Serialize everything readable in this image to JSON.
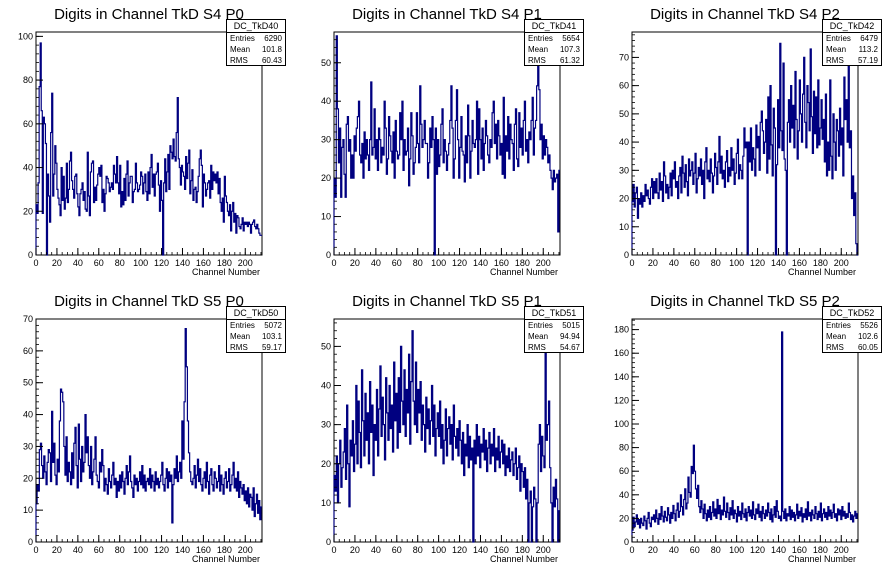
{
  "chart_data": [
    {
      "type": "bar",
      "title": "Digits in Channel TkD S4 P0",
      "xlabel": "Channel Number",
      "xlim": [
        0,
        216
      ],
      "ylim": [
        0,
        102
      ],
      "xticks": [
        0,
        20,
        40,
        60,
        80,
        100,
        120,
        140,
        160,
        180,
        200
      ],
      "yticks": [
        0,
        20,
        40,
        60,
        80,
        100
      ],
      "stats": {
        "name": "DC_TkD40",
        "entries_label": "Entries",
        "entries": "6290",
        "mean_label": "Mean",
        "mean": "101.8",
        "rms_label": "RMS",
        "rms": "60.43"
      },
      "color": "#000080",
      "values": [
        23,
        19,
        33,
        77,
        97,
        66,
        19,
        63,
        60,
        51,
        0,
        37,
        27,
        15,
        56,
        74,
        27,
        37,
        50,
        42,
        30,
        26,
        23,
        18,
        40,
        25,
        36,
        21,
        26,
        42,
        24,
        30,
        43,
        47,
        34,
        30,
        26,
        36,
        37,
        28,
        22,
        18,
        28,
        30,
        33,
        25,
        29,
        21,
        20,
        47,
        27,
        18,
        38,
        42,
        43,
        24,
        31,
        25,
        32,
        37,
        40,
        36,
        41,
        24,
        30,
        20,
        28,
        36,
        35,
        33,
        29,
        31,
        33,
        30,
        41,
        37,
        33,
        45,
        33,
        28,
        41,
        22,
        29,
        23,
        35,
        25,
        37,
        43,
        27,
        33,
        36,
        36,
        24,
        29,
        30,
        42,
        33,
        29,
        30,
        32,
        38,
        36,
        28,
        33,
        37,
        29,
        25,
        38,
        28,
        40,
        46,
        31,
        37,
        27,
        37,
        38,
        42,
        32,
        20,
        34,
        25,
        0,
        33,
        44,
        29,
        38,
        46,
        30,
        50,
        47,
        44,
        53,
        45,
        43,
        56,
        72,
        44,
        40,
        32,
        41,
        38,
        36,
        30,
        45,
        35,
        42,
        48,
        28,
        34,
        39,
        25,
        30,
        31,
        24,
        29,
        36,
        44,
        48,
        41,
        22,
        37,
        33,
        27,
        30,
        33,
        34,
        26,
        41,
        30,
        38,
        34,
        37,
        33,
        38,
        28,
        35,
        24,
        20,
        26,
        15,
        36,
        27,
        24,
        20,
        18,
        23,
        11,
        20,
        24,
        15,
        19,
        10,
        18,
        17,
        13,
        12,
        14,
        17,
        11,
        15,
        14,
        15,
        13,
        15,
        14,
        10,
        14,
        15,
        16,
        13,
        12,
        14,
        12,
        10,
        9,
        9
      ]
    },
    {
      "type": "bar",
      "title": "Digits in Channel TkD S4 P1",
      "xlabel": "Channel Number",
      "xlim": [
        0,
        216
      ],
      "ylim": [
        0,
        58
      ],
      "xticks": [
        0,
        20,
        40,
        60,
        80,
        100,
        120,
        140,
        160,
        180,
        200
      ],
      "yticks": [
        0,
        10,
        20,
        30,
        40,
        50
      ],
      "stats": {
        "name": "DC_TkD41",
        "entries_label": "Entries",
        "entries": "5654",
        "mean_label": "Mean",
        "mean": "107.3",
        "rms_label": "RMS",
        "rms": "61.32"
      },
      "color": "#000080",
      "values": [
        20,
        15,
        57,
        38,
        24,
        33,
        15,
        28,
        30,
        21,
        15,
        34,
        36,
        27,
        30,
        20,
        26,
        20,
        31,
        27,
        33,
        36,
        40,
        26,
        24,
        29,
        20,
        32,
        25,
        30,
        26,
        22,
        30,
        45,
        26,
        28,
        38,
        25,
        30,
        22,
        33,
        30,
        24,
        28,
        26,
        40,
        33,
        21,
        25,
        36,
        31,
        27,
        24,
        32,
        20,
        35,
        27,
        25,
        26,
        37,
        30,
        40,
        22,
        30,
        26,
        27,
        33,
        18,
        25,
        37,
        31,
        21,
        24,
        28,
        37,
        29,
        24,
        44,
        34,
        28,
        30,
        35,
        29,
        29,
        20,
        24,
        33,
        28,
        36,
        30,
        0,
        33,
        21,
        30,
        23,
        26,
        34,
        38,
        24,
        30,
        27,
        22,
        26,
        29,
        35,
        44,
        33,
        20,
        25,
        35,
        43,
        30,
        20,
        28,
        36,
        27,
        26,
        19,
        31,
        24,
        39,
        31,
        20,
        27,
        35,
        29,
        28,
        30,
        40,
        21,
        38,
        30,
        25,
        33,
        22,
        29,
        35,
        31,
        26,
        24,
        30,
        28,
        37,
        40,
        29,
        34,
        25,
        35,
        31,
        26,
        29,
        21,
        41,
        20,
        31,
        27,
        36,
        25,
        34,
        30,
        29,
        22,
        34,
        38,
        25,
        23,
        37,
        28,
        33,
        26,
        35,
        40,
        27,
        30,
        24,
        32,
        30,
        35,
        41,
        26,
        33,
        35,
        44,
        49,
        43,
        30,
        34,
        25,
        31,
        26,
        30,
        28,
        24,
        26,
        22,
        20,
        17,
        22,
        19,
        20,
        21,
        6,
        22
      ]
    },
    {
      "type": "bar",
      "title": "Digits in Channel TkD S4 P2",
      "xlabel": "Channel Number",
      "xlim": [
        0,
        216
      ],
      "ylim": [
        0,
        79
      ],
      "xticks": [
        0,
        20,
        40,
        60,
        80,
        100,
        120,
        140,
        160,
        180,
        200
      ],
      "yticks": [
        0,
        10,
        20,
        30,
        40,
        50,
        60,
        70
      ],
      "stats": {
        "name": "DC_TkD42",
        "entries_label": "Entries",
        "entries": "6479",
        "mean_label": "Mean",
        "mean": "113.2",
        "rms_label": "RMS",
        "rms": "57.19"
      },
      "color": "#000080",
      "values": [
        19,
        25,
        17,
        22,
        24,
        13,
        20,
        18,
        22,
        17,
        21,
        19,
        25,
        21,
        23,
        20,
        18,
        24,
        27,
        20,
        26,
        22,
        27,
        22,
        20,
        29,
        23,
        26,
        19,
        33,
        28,
        22,
        25,
        20,
        24,
        29,
        21,
        30,
        27,
        33,
        24,
        26,
        20,
        28,
        31,
        22,
        35,
        29,
        24,
        32,
        26,
        21,
        34,
        28,
        30,
        33,
        25,
        29,
        36,
        22,
        27,
        31,
        28,
        34,
        25,
        30,
        20,
        33,
        38,
        27,
        30,
        26,
        34,
        29,
        22,
        28,
        36,
        31,
        25,
        33,
        42,
        29,
        35,
        27,
        30,
        24,
        33,
        37,
        26,
        31,
        28,
        38,
        30,
        34,
        25,
        29,
        36,
        41,
        27,
        32,
        30,
        27,
        35,
        45,
        38,
        40,
        0,
        40,
        33,
        45,
        30,
        38,
        34,
        28,
        46,
        38,
        42,
        30,
        47,
        51,
        44,
        36,
        40,
        48,
        29,
        56,
        34,
        60,
        39,
        28,
        52,
        45,
        0,
        32,
        55,
        38,
        75,
        44,
        37,
        68,
        34,
        30,
        0,
        47,
        55,
        40,
        60,
        45,
        53,
        38,
        65,
        48,
        34,
        44,
        62,
        50,
        40,
        57,
        70,
        47,
        38,
        60,
        54,
        44,
        73,
        49,
        36,
        58,
        43,
        56,
        38,
        62,
        39,
        45,
        55,
        41,
        48,
        33,
        57,
        28,
        40,
        30,
        62,
        35,
        27,
        50,
        40,
        30,
        48,
        44,
        35,
        52,
        39,
        45,
        28,
        63,
        48,
        55,
        40,
        69,
        38,
        44,
        20,
        28,
        14,
        22,
        4,
        0
      ]
    },
    {
      "type": "bar",
      "title": "Digits in Channel TkD S5 P0",
      "xlabel": "Channel Number",
      "xlim": [
        0,
        216
      ],
      "ylim": [
        0,
        70
      ],
      "xticks": [
        0,
        20,
        40,
        60,
        80,
        100,
        120,
        140,
        160,
        180,
        200
      ],
      "yticks": [
        0,
        10,
        20,
        30,
        40,
        50,
        60,
        70
      ],
      "stats": {
        "name": "DC_TkD50",
        "entries_label": "Entries",
        "entries": "5072",
        "mean_label": "Mean",
        "mean": "103.1",
        "rms_label": "RMS",
        "rms": "59.17"
      },
      "color": "#000080",
      "values": [
        12,
        18,
        16,
        29,
        31,
        24,
        20,
        27,
        22,
        18,
        25,
        29,
        28,
        19,
        41,
        25,
        31,
        21,
        18,
        26,
        22,
        38,
        48,
        47,
        44,
        30,
        21,
        33,
        19,
        25,
        22,
        18,
        28,
        20,
        31,
        36,
        24,
        17,
        37,
        26,
        19,
        30,
        22,
        25,
        40,
        28,
        33,
        24,
        20,
        30,
        18,
        22,
        26,
        33,
        21,
        19,
        17,
        25,
        22,
        29,
        24,
        16,
        20,
        18,
        15,
        23,
        19,
        17,
        21,
        25,
        18,
        20,
        14,
        19,
        16,
        21,
        17,
        22,
        19,
        15,
        20,
        24,
        18,
        22,
        27,
        19,
        17,
        14,
        21,
        18,
        20,
        16,
        19,
        22,
        18,
        24,
        17,
        21,
        16,
        19,
        20,
        18,
        23,
        17,
        21,
        19,
        16,
        22,
        18,
        20,
        17,
        19,
        21,
        25,
        18,
        16,
        20,
        23,
        17,
        22,
        19,
        21,
        6,
        18,
        23,
        20,
        27,
        19,
        22,
        25,
        20,
        38,
        26,
        44,
        67,
        55,
        38,
        28,
        22,
        19,
        18,
        20,
        24,
        17,
        21,
        26,
        19,
        23,
        18,
        16,
        20,
        22,
        17,
        25,
        19,
        15,
        21,
        23,
        18,
        16,
        22,
        20,
        17,
        19,
        24,
        16,
        21,
        18,
        15,
        20,
        22,
        17,
        19,
        23,
        16,
        18,
        21,
        25,
        17,
        20,
        16,
        22,
        14,
        19,
        17,
        15,
        18,
        13,
        16,
        12,
        17,
        11,
        15,
        14,
        10,
        17,
        8,
        12,
        15,
        9,
        13,
        7,
        11
      ]
    },
    {
      "type": "bar",
      "title": "Digits in Channel TkD S5 P1",
      "xlabel": "Channel Number",
      "xlim": [
        0,
        216
      ],
      "ylim": [
        0,
        57
      ],
      "xticks": [
        0,
        20,
        40,
        60,
        80,
        100,
        120,
        140,
        160,
        180,
        200
      ],
      "yticks": [
        0,
        10,
        20,
        30,
        40,
        50
      ],
      "stats": {
        "name": "DC_TkD51",
        "entries_label": "Entries",
        "entries": "5015",
        "mean_label": "Mean",
        "mean": "94.94",
        "rms_label": "RMS",
        "rms": "54.67"
      },
      "color": "#000080",
      "values": [
        17,
        13,
        22,
        10,
        20,
        26,
        14,
        19,
        23,
        29,
        16,
        35,
        20,
        9,
        26,
        22,
        31,
        18,
        25,
        40,
        20,
        36,
        28,
        19,
        44,
        31,
        22,
        38,
        26,
        33,
        20,
        41,
        28,
        35,
        17,
        30,
        26,
        39,
        22,
        34,
        45,
        27,
        37,
        30,
        21,
        42,
        33,
        26,
        40,
        29,
        35,
        23,
        46,
        31,
        38,
        24,
        42,
        28,
        50,
        36,
        30,
        44,
        27,
        39,
        33,
        48,
        25,
        41,
        54,
        36,
        30,
        46,
        28,
        39,
        33,
        41,
        26,
        35,
        30,
        23,
        37,
        29,
        34,
        25,
        31,
        40,
        27,
        35,
        22,
        29,
        33,
        27,
        36,
        24,
        30,
        20,
        26,
        34,
        22,
        29,
        32,
        25,
        30,
        21,
        35,
        27,
        24,
        29,
        22,
        31,
        26,
        20,
        28,
        17,
        25,
        22,
        30,
        19,
        27,
        21,
        24,
        0,
        26,
        20,
        30,
        22,
        27,
        19,
        25,
        23,
        29,
        21,
        26,
        18,
        24,
        28,
        20,
        25,
        22,
        29,
        18,
        24,
        21,
        27,
        19,
        23,
        26,
        20,
        25,
        17,
        22,
        19,
        24,
        18,
        21,
        23,
        17,
        20,
        24,
        16,
        19,
        22,
        13,
        20,
        18,
        14,
        19,
        11,
        16,
        0,
        10,
        13,
        0,
        9,
        14,
        11,
        0,
        10,
        25,
        30,
        18,
        27,
        22,
        19,
        49,
        26,
        30,
        36,
        19,
        10,
        0,
        14,
        9,
        16,
        11,
        0,
        8
      ]
    },
    {
      "type": "bar",
      "title": "Digits in Channel TkD S5 P2",
      "xlabel": "Channel Number",
      "xlim": [
        0,
        216
      ],
      "ylim": [
        0,
        189
      ],
      "xticks": [
        0,
        20,
        40,
        60,
        80,
        100,
        120,
        140,
        160,
        180,
        200
      ],
      "yticks": [
        0,
        20,
        40,
        60,
        80,
        100,
        120,
        140,
        160,
        180
      ],
      "stats": {
        "name": "DC_TkD52",
        "entries_label": "Entries",
        "entries": "5526",
        "mean_label": "Mean",
        "mean": "102.6",
        "rms_label": "RMS",
        "rms": "60.05"
      },
      "color": "#000080",
      "values": [
        10,
        21,
        13,
        17,
        23,
        15,
        19,
        12,
        20,
        16,
        14,
        22,
        18,
        11,
        20,
        25,
        16,
        13,
        21,
        19,
        23,
        17,
        27,
        20,
        15,
        24,
        19,
        30,
        22,
        17,
        26,
        21,
        18,
        29,
        23,
        16,
        25,
        20,
        31,
        24,
        18,
        27,
        33,
        21,
        26,
        40,
        30,
        23,
        36,
        45,
        28,
        33,
        55,
        42,
        38,
        64,
        58,
        82,
        60,
        45,
        37,
        48,
        30,
        25,
        35,
        28,
        20,
        32,
        24,
        18,
        27,
        21,
        30,
        19,
        25,
        34,
        22,
        28,
        20,
        36,
        24,
        31,
        19,
        27,
        23,
        38,
        26,
        21,
        33,
        25,
        19,
        29,
        23,
        35,
        20,
        27,
        24,
        17,
        30,
        22,
        26,
        19,
        33,
        24,
        21,
        28,
        18,
        25,
        30,
        22,
        27,
        20,
        34,
        23,
        19,
        28,
        24,
        32,
        21,
        26,
        18,
        30,
        24,
        20,
        27,
        22,
        33,
        25,
        19,
        28,
        17,
        23,
        30,
        21,
        35,
        26,
        20,
        22,
        18,
        178,
        26,
        20,
        28,
        18,
        24,
        22,
        30,
        19,
        27,
        21,
        25,
        18,
        23,
        32,
        20,
        26,
        22,
        29,
        17,
        24,
        21,
        28,
        19,
        34,
        22,
        25,
        18,
        27,
        23,
        20,
        30,
        24,
        19,
        26,
        21,
        33,
        18,
        24,
        28,
        21,
        25,
        19,
        30,
        22,
        27,
        20,
        25,
        32,
        21,
        24,
        18,
        28,
        23,
        27,
        19,
        30,
        22,
        26,
        20,
        24,
        21,
        33,
        25,
        19,
        23,
        17,
        22,
        26,
        20,
        24
      ]
    }
  ]
}
